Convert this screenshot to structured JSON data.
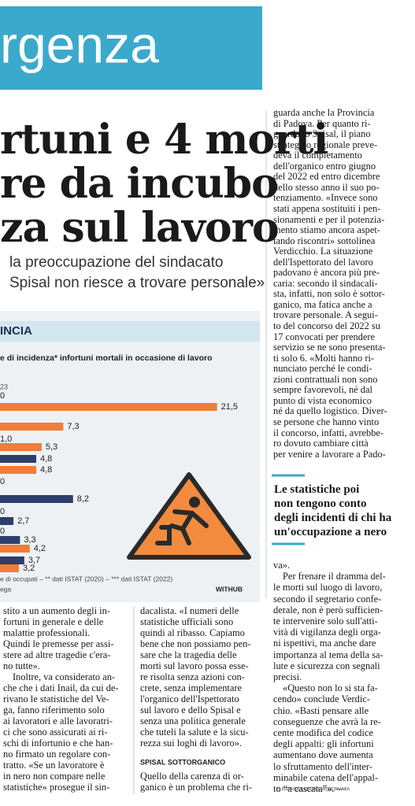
{
  "header": {
    "section": "rgenza"
  },
  "headline": {
    "lines": [
      "rtuni e 4 morti",
      "re da incubo",
      "za sul lavoro"
    ]
  },
  "subtitle": {
    "lines": [
      "la preoccupazione del sindacato",
      "Spisal non riesce a trovare personale»"
    ]
  },
  "chart": {
    "label": "INCIA",
    "title": "e di incidenza* infortuni mortali in occasione di lavoro",
    "legend_fragment": "23",
    "xlim": [
      0,
      24
    ],
    "bars": {
      "values": [
        21.5,
        7.3,
        5.3,
        4.8,
        4.8,
        8.2,
        2.7,
        3.3,
        4.2,
        3.7,
        3.2
      ],
      "value_labels": [
        "21,5",
        "7,3",
        "5,3",
        "4,8",
        "4,8",
        "8,2",
        "2,7",
        "3,3",
        "4,2",
        "3,7",
        "3,2"
      ],
      "colors": [
        "#f07d3a",
        "#f07d3a",
        "#f07d3a",
        "#2c3f6c",
        "#f07d3a",
        "#2c3f6c",
        "#2c3f6c",
        "#2c3f6c",
        "#f07d3a",
        "#2c3f6c",
        "#f07d3a"
      ]
    },
    "cropped_labels": [
      "0",
      "1,0",
      "0",
      "0",
      "0"
    ],
    "footnotes": [
      "e di occupati – ** dati ISTAT (2020) – *** dati ISTAT (2022)",
      "ega"
    ],
    "source": "WITHUB"
  },
  "right_column": {
    "lines": [
      "guarda anche la Provincia",
      "di Padova. Per quanto ri-",
      "guarda lo Spisal, il piano",
      "strategico regionale preve-",
      "deva il completamento",
      "dell'organico entro giugno",
      "del 2022 ed entro dicembre",
      "dello stesso anno il suo po-",
      "tenziamento. «Invece sono",
      "stati appena sostituiti i pen-",
      "sionamenti e per il potenzia-",
      "mento stiamo ancora aspet-",
      "tando riscontri» sottolinea",
      "Verdicchio. La situazione",
      "dell'Ispettorato del lavoro",
      "padovano è ancora più pre-",
      "caria: secondo il sindacali-",
      "sta, infatti, non solo è sottor-",
      "ganico, ma fatica anche a",
      "trovare personale. A segui-",
      "to del concorso del 2022 su",
      "17 convocati per prendere",
      "servizio se ne sono presenta-",
      "ti solo 6. «Molti hanno ri-",
      "nunciato perché le condi-",
      "zioni contrattuali non sono",
      "sempre favorevoli, né dal",
      "punto di vista economico",
      "né da quello logistico. Diver-",
      "se persone che hanno vinto",
      "il concorso, infatti, avrebbe-",
      "ro dovuto cambiare città",
      "per venire a lavorare a Pado-"
    ]
  },
  "pullquote": {
    "lines": [
      "Le statistiche poi",
      "non tengono conto",
      "degli incidenti di chi ha",
      "un'occupazione a nero"
    ]
  },
  "right_column_end": {
    "lines": [
      "va».",
      "Per frenare il dramma del-",
      "le morti sul luogo di lavoro,",
      "secondo il segretario confe-",
      "derale, non è però sufficien-",
      "te intervenire solo sull'atti-",
      "vità di vigilanza degli orga-",
      "ni ispettivi, ma anche dare",
      "importanza al tema della sa-",
      "lute e sicurezza con segnali",
      "precisi.",
      "«Questo non lo si sta fa-",
      "cendo» conclude Verdic-",
      "chio. «Basti pensare alle",
      "conseguenze che avrà la re-",
      "cente modifica del codice",
      "degli appalti: gli infortuni",
      "aumentano dove aumenta",
      "lo sfruttamento dell'inter-",
      "minabile catena dell'appal-",
      "to “a cascata”». —"
    ]
  },
  "copyright": "© RIPRODUZIONE RISERVATA",
  "left_column": {
    "lines": [
      "stito a un aumento degli in-",
      "fortuni in generale e delle",
      "malattie professionali.",
      "Quindi le premesse per assi-",
      "stere ad altre tragedie c'era-",
      "no tutte».",
      "Inoltre, va considerato an-",
      "che che i dati Inail, da cui de-",
      "rivano le statistiche del Ve-",
      "ga, fanno riferimento solo",
      "ai lavoratori e alle lavoratri-",
      "ci che sono assicurati ai ri-",
      "schi di infortunio e che han-",
      "no firmato un regolare con-",
      "tratto. «Se un lavoratore è",
      "in nero non compare nelle",
      "statistiche» prosegue il sin-"
    ]
  },
  "middle_column": {
    "lines": [
      "dacalista. «I numeri delle",
      "statistiche ufficiali sono",
      "quindi al ribasso. Capiamo",
      "bene che non possiamo pen-",
      "sare che la tragedia delle",
      "morti sul lavoro possa esse-",
      "re risolta senza azioni con-",
      "crete, senza implementare",
      "l'organico dell'Ispettorato",
      "sul lavoro e dello Spisal e",
      "senza una politica generale",
      "che tuteli la salute e la sicu-",
      "rezza sui loghi di lavoro»."
    ],
    "subhead": "SPISAL SOTTORGANICO",
    "after": [
      "Quello della carenza di or-",
      "ganico è un problema che ri-"
    ]
  }
}
